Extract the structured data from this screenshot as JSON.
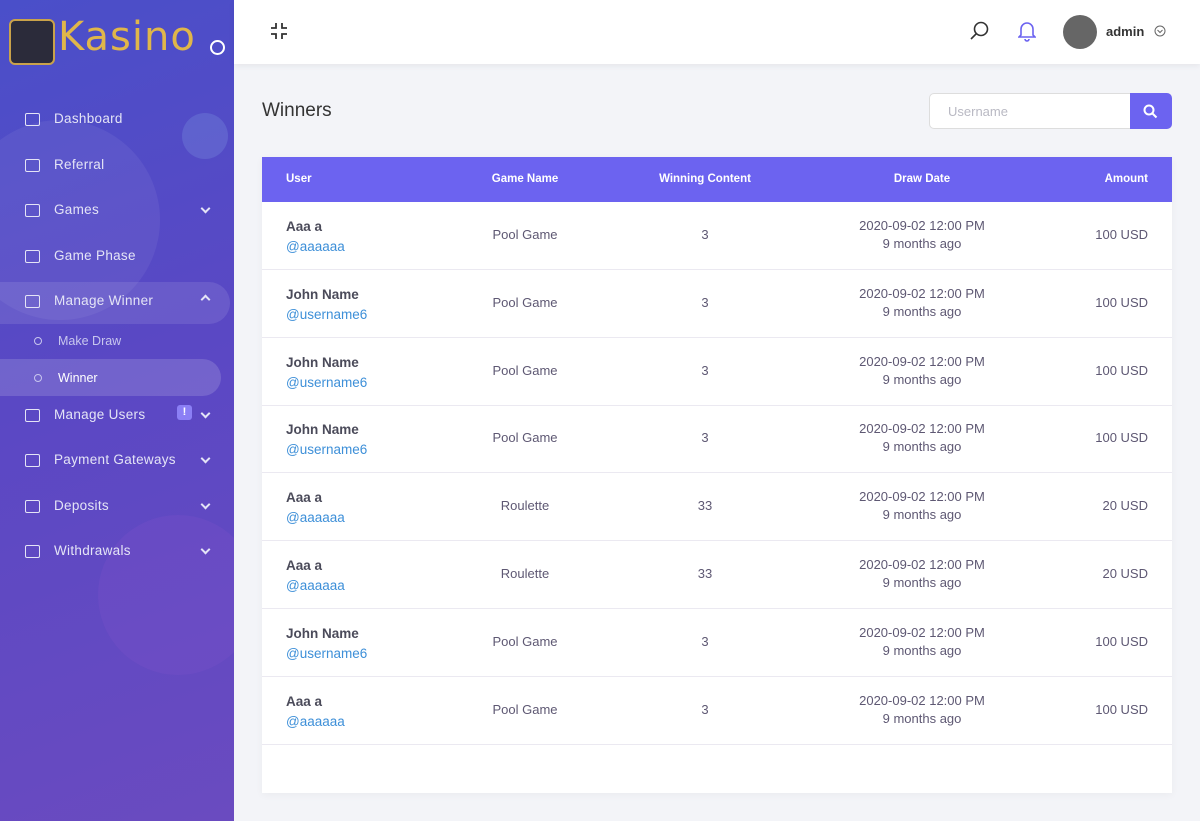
{
  "sidebar": {
    "logo": "Kasino",
    "menu": [
      {
        "label": "Dashboard",
        "submenu": false
      },
      {
        "label": "Referral",
        "submenu": false
      },
      {
        "label": "Games",
        "submenu": true
      },
      {
        "label": "Game Phase",
        "submenu": false
      },
      {
        "label": "Manage Winner",
        "submenu": true,
        "open": true,
        "children": [
          {
            "label": "Make Draw"
          },
          {
            "label": "Winner",
            "active": true
          }
        ]
      },
      {
        "label": "Manage Users",
        "submenu": true,
        "badge": "!"
      },
      {
        "label": "Payment Gateways",
        "submenu": true
      },
      {
        "label": "Deposits",
        "submenu": true
      },
      {
        "label": "Withdrawals",
        "submenu": true
      }
    ]
  },
  "header": {
    "user": "admin"
  },
  "page": {
    "title": "Winners",
    "search_placeholder": "Username"
  },
  "table": {
    "columns": [
      "User",
      "Game Name",
      "Winning Content",
      "Draw Date",
      "Amount"
    ],
    "rows": [
      {
        "name": "Aaa a",
        "username": "@aaaaaa",
        "game": "Pool Game",
        "content": 3,
        "date": "2020-09-02 12:00 PM",
        "ago": "9 months ago",
        "amount": "100 USD"
      },
      {
        "name": "John Name",
        "username": "@username6",
        "game": "Pool Game",
        "content": 3,
        "date": "2020-09-02 12:00 PM",
        "ago": "9 months ago",
        "amount": "100 USD"
      },
      {
        "name": "John Name",
        "username": "@username6",
        "game": "Pool Game",
        "content": 3,
        "date": "2020-09-02 12:00 PM",
        "ago": "9 months ago",
        "amount": "100 USD"
      },
      {
        "name": "John Name",
        "username": "@username6",
        "game": "Pool Game",
        "content": 3,
        "date": "2020-09-02 12:00 PM",
        "ago": "9 months ago",
        "amount": "100 USD"
      },
      {
        "name": "Aaa a",
        "username": "@aaaaaa",
        "game": "Roulette",
        "content": 33,
        "date": "2020-09-02 12:00 PM",
        "ago": "9 months ago",
        "amount": "20 USD"
      },
      {
        "name": "Aaa a",
        "username": "@aaaaaa",
        "game": "Roulette",
        "content": 33,
        "date": "2020-09-02 12:00 PM",
        "ago": "9 months ago",
        "amount": "20 USD"
      },
      {
        "name": "John Name",
        "username": "@username6",
        "game": "Pool Game",
        "content": 3,
        "date": "2020-09-02 12:00 PM",
        "ago": "9 months ago",
        "amount": "100 USD"
      },
      {
        "name": "Aaa a",
        "username": "@aaaaaa",
        "game": "Pool Game",
        "content": 3,
        "date": "2020-09-02 12:00 PM",
        "ago": "9 months ago",
        "amount": "100 USD"
      }
    ]
  }
}
